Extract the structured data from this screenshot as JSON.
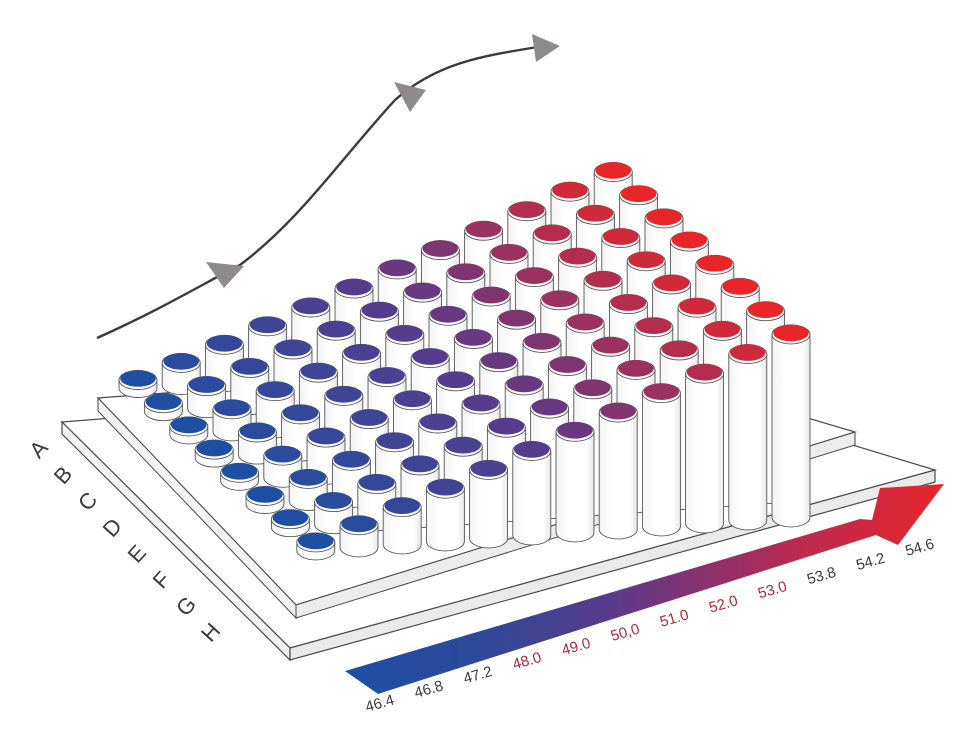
{
  "plate": {
    "row_labels": [
      "A",
      "B",
      "C",
      "D",
      "E",
      "F",
      "G",
      "H"
    ],
    "column_count": 12,
    "row_count": 8
  },
  "gradient": {
    "direction": "left-to-right",
    "labels": [
      {
        "text": "46.4",
        "color": "#3a3a3a"
      },
      {
        "text": "46.8",
        "color": "#3a3a3a"
      },
      {
        "text": "47.2",
        "color": "#3a3a3a"
      },
      {
        "text": "48.0",
        "color": "#b0283a"
      },
      {
        "text": "49.0",
        "color": "#b0283a"
      },
      {
        "text": "50,0",
        "color": "#b0283a"
      },
      {
        "text": "51.0",
        "color": "#b0283a"
      },
      {
        "text": "52.0",
        "color": "#b0283a"
      },
      {
        "text": "53.0",
        "color": "#b0283a"
      },
      {
        "text": "53.8",
        "color": "#3a3a3a"
      },
      {
        "text": "54.2",
        "color": "#3a3a3a"
      },
      {
        "text": "54.6",
        "color": "#3a3a3a"
      }
    ]
  },
  "colors": {
    "cold": "#1f4fa3",
    "mid": "#5b3a8a",
    "hot": "#e8262a",
    "trend_line": "#3a3a3a",
    "trend_arrow": "#8f8a8c"
  }
}
